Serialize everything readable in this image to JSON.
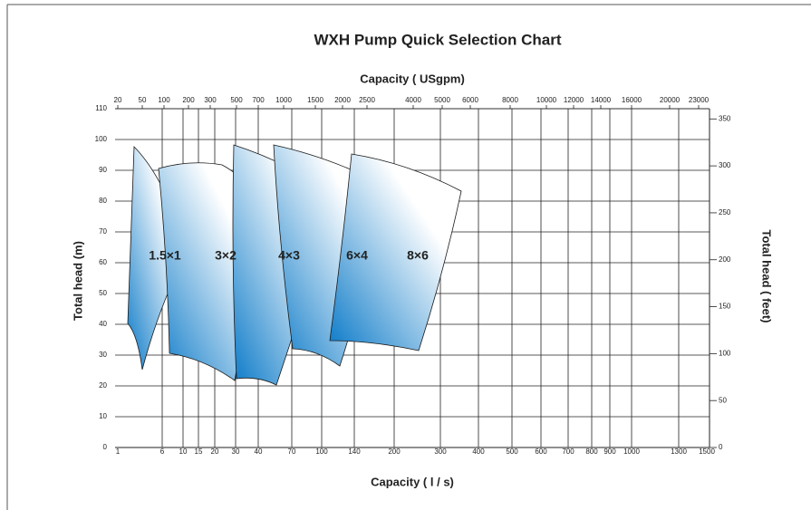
{
  "chart_data": {
    "type": "region",
    "title": "WXH Pump Quick Selection Chart",
    "x2_label": "Capacity ( USgpm)",
    "x_label": "Capacity ( l / s)",
    "y_label": "Total head (m)",
    "y2_label": "Total head ( feet)",
    "xticks": [
      1,
      6,
      10,
      15,
      20,
      30,
      40,
      70,
      100,
      140,
      200,
      300,
      400,
      500,
      600,
      700,
      800,
      900,
      1000,
      1300,
      1500
    ],
    "x2ticks": [
      20,
      50,
      100,
      200,
      300,
      500,
      700,
      1000,
      1500,
      2000,
      2500,
      4000,
      5000,
      6000,
      8000,
      10000,
      12000,
      14000,
      16000,
      20000,
      23000
    ],
    "ylim": [
      0,
      110
    ],
    "yticks": [
      0,
      10,
      20,
      30,
      40,
      50,
      60,
      70,
      80,
      90,
      100,
      110
    ],
    "y2lim": [
      0,
      360.9
    ],
    "y2ticks": [
      0,
      50,
      100,
      150,
      200,
      250,
      300,
      350
    ],
    "grid": true,
    "color": "#0b7ac8",
    "regions": [
      {
        "label": "1.5×1"
      },
      {
        "label": "3×2"
      },
      {
        "label": "4×3"
      },
      {
        "label": "6×4"
      },
      {
        "label": "8×6"
      }
    ]
  }
}
